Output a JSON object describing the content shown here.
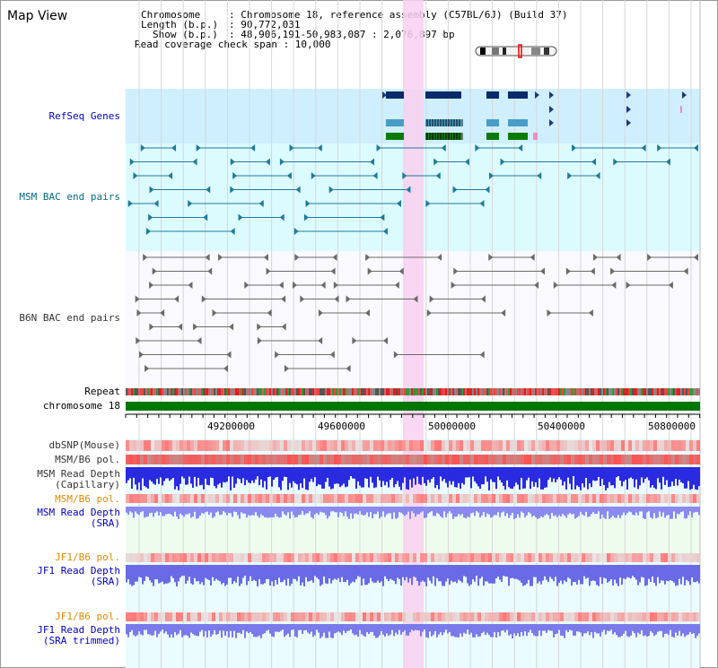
{
  "app": {
    "title": "Map View"
  },
  "header": {
    "chromosome_key": "Chromosome",
    "chromosome_val": ": Chromosome 18, reference assembly (C57BL/6J) (Build 37)",
    "length_key": "Length (b.p.)",
    "length_val": ": 90,772,031",
    "show_key": "Show (b.p.)",
    "show_val": ": 48,906,191-50,983,087 : 2,076,897 bp",
    "coverage": "Read coverage check span : 10,000"
  },
  "tracks": {
    "refseq": "RefSeq Genes",
    "msm_bac": "MSM BAC end pairs",
    "b6n_bac": "B6N BAC end pairs",
    "repeat": "Repeat",
    "chromosome": "chromosome 18",
    "dbsnp": "dbSNP(Mouse)",
    "msm_b6_pol_1": "MSM/B6 pol.",
    "msm_read_depth_cap_1": "MSM Read Depth",
    "msm_read_depth_cap_2": "(Capillary)",
    "msm_b6_pol_2": "MSM/B6 pol.",
    "msm_read_depth_sra_1": "MSM Read Depth",
    "msm_read_depth_sra_2": "(SRA)",
    "jf1_b6_pol_1": "JF1/B6 pol.",
    "jf1_read_depth_1": "JF1 Read Depth",
    "jf1_read_depth_2": "(SRA)",
    "jf1_b6_pol_2": "JF1/B6 pol.",
    "jf1_read_depth_trim_1": "JF1 Read Depth",
    "jf1_read_depth_trim_2": "(SRA trimmed)"
  },
  "axis": {
    "ticks": [
      "49200000",
      "49600000",
      "50000000",
      "50400000",
      "50800000"
    ]
  },
  "colors": {
    "blue_label": "#0000c0",
    "teal_label": "#006a80",
    "gray_label": "#333333",
    "orange_label": "#e08a00",
    "highlight": "#f9d0f0",
    "refseq_bg": "#cfefff",
    "msm_bg": "#dcfbff",
    "chromosome_bar": "#007700"
  }
}
